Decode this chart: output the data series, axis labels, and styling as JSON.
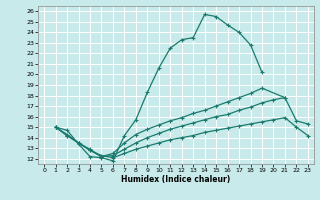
{
  "xlabel": "Humidex (Indice chaleur)",
  "bg_color": "#c8eaea",
  "grid_color": "#b0d8d8",
  "line_color": "#1a7a6e",
  "xlim": [
    -0.5,
    23.5
  ],
  "ylim": [
    11.5,
    26.5
  ],
  "xticks": [
    0,
    1,
    2,
    3,
    4,
    5,
    6,
    7,
    8,
    9,
    10,
    11,
    12,
    13,
    14,
    15,
    16,
    17,
    18,
    19,
    20,
    21,
    22,
    23
  ],
  "yticks": [
    12,
    13,
    14,
    15,
    16,
    17,
    18,
    19,
    20,
    21,
    22,
    23,
    24,
    25,
    26
  ],
  "lines": [
    {
      "x": [
        1,
        2,
        3,
        4,
        5,
        6,
        7,
        8,
        9,
        10,
        11,
        12,
        13,
        14,
        15,
        16,
        17,
        18,
        19
      ],
      "y": [
        15.0,
        14.7,
        13.4,
        12.2,
        12.1,
        11.8,
        14.2,
        15.7,
        18.3,
        20.6,
        22.5,
        23.3,
        23.5,
        25.7,
        25.5,
        24.7,
        24.0,
        22.8,
        20.2
      ]
    },
    {
      "x": [
        1,
        2,
        3,
        4,
        5,
        6,
        7,
        8,
        9,
        10,
        11,
        12,
        13,
        14,
        15,
        16,
        17,
        18,
        19,
        21
      ],
      "y": [
        15.0,
        14.3,
        13.5,
        12.8,
        12.2,
        12.5,
        13.5,
        14.3,
        14.8,
        15.2,
        15.6,
        15.9,
        16.3,
        16.6,
        17.0,
        17.4,
        17.8,
        18.2,
        18.7,
        17.8
      ]
    },
    {
      "x": [
        1,
        2,
        3,
        4,
        5,
        6,
        7,
        8,
        9,
        10,
        11,
        12,
        13,
        14,
        15,
        16,
        17,
        18,
        19,
        20,
        21,
        22,
        23
      ],
      "y": [
        15.0,
        14.2,
        13.5,
        12.9,
        12.2,
        12.3,
        12.9,
        13.5,
        14.0,
        14.4,
        14.8,
        15.1,
        15.4,
        15.7,
        16.0,
        16.2,
        16.6,
        16.9,
        17.3,
        17.6,
        17.8,
        15.6,
        15.3
      ]
    },
    {
      "x": [
        1,
        2,
        3,
        4,
        5,
        6,
        7,
        8,
        9,
        10,
        11,
        12,
        13,
        14,
        15,
        16,
        17,
        18,
        19,
        20,
        21,
        22,
        23
      ],
      "y": [
        15.0,
        14.2,
        13.5,
        12.8,
        12.3,
        12.1,
        12.5,
        12.9,
        13.2,
        13.5,
        13.8,
        14.0,
        14.2,
        14.5,
        14.7,
        14.9,
        15.1,
        15.3,
        15.5,
        15.7,
        15.9,
        15.0,
        14.2
      ]
    }
  ]
}
